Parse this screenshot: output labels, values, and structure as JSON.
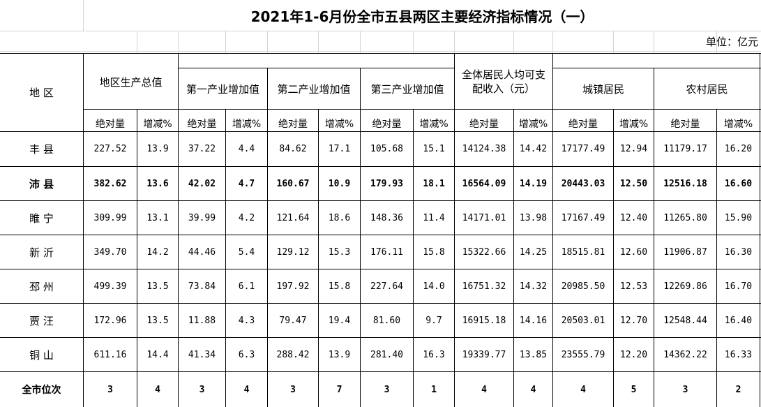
{
  "title": "2021年1-6月份全市五县两区主要经济指标情况（一）",
  "unit": "单位：亿元",
  "headers": {
    "region": "地  区",
    "gdp": "地区生产总值",
    "primary": "第一产业增加值",
    "secondary": "第二产业增加值",
    "tertiary": "第三产业增加值",
    "income_line1": "全体居民人均可支",
    "income_line2": "配收入（元）",
    "urban": "城镇居民",
    "rural": "农村居民"
  },
  "subheaders": [
    "绝对量",
    "增减%",
    "绝对量",
    "增减%",
    "绝对量",
    "增减%",
    "绝对量",
    "增减%",
    "绝对量",
    "增减%",
    "绝对量",
    "增减%",
    "绝对量",
    "增减%"
  ],
  "rows": [
    {
      "region": "丰 县",
      "values": [
        "227.52",
        "13.9",
        "37.22",
        "4.4",
        "84.62",
        "17.1",
        "105.68",
        "15.1",
        "14124.38",
        "14.42",
        "17177.49",
        "12.94",
        "11179.17",
        "16.20"
      ]
    },
    {
      "region": "沛 县",
      "values": [
        "382.62",
        "13.6",
        "42.02",
        "4.7",
        "160.67",
        "10.9",
        "179.93",
        "18.1",
        "16564.09",
        "14.19",
        "20443.03",
        "12.50",
        "12516.18",
        "16.60"
      ],
      "bold": true
    },
    {
      "region": "睢 宁",
      "values": [
        "309.99",
        "13.1",
        "39.99",
        "4.2",
        "121.64",
        "18.6",
        "148.36",
        "11.4",
        "14171.01",
        "13.98",
        "17167.49",
        "12.40",
        "11265.80",
        "15.90"
      ]
    },
    {
      "region": "新 沂",
      "values": [
        "349.70",
        "14.2",
        "44.46",
        "5.4",
        "129.12",
        "15.3",
        "176.11",
        "15.8",
        "15322.66",
        "14.25",
        "18515.81",
        "12.60",
        "11906.87",
        "16.30"
      ]
    },
    {
      "region": "邳 州",
      "values": [
        "499.39",
        "13.5",
        "73.84",
        "6.1",
        "197.92",
        "15.8",
        "227.64",
        "14.0",
        "16751.32",
        "14.32",
        "20985.50",
        "12.53",
        "12269.86",
        "16.70"
      ]
    },
    {
      "region": "贾 汪",
      "values": [
        "172.96",
        "13.5",
        "11.88",
        "4.3",
        "79.47",
        "19.4",
        "81.60",
        "9.7",
        "16915.18",
        "14.16",
        "20503.01",
        "12.70",
        "12548.44",
        "16.40"
      ]
    },
    {
      "region": "铜 山",
      "values": [
        "611.16",
        "14.4",
        "41.34",
        "6.3",
        "288.42",
        "13.9",
        "281.40",
        "16.3",
        "19339.77",
        "13.85",
        "23555.79",
        "12.20",
        "14362.22",
        "16.33"
      ]
    }
  ],
  "rank_row": {
    "label": "全市位次",
    "values": [
      "3",
      "4",
      "3",
      "4",
      "3",
      "7",
      "3",
      "1",
      "4",
      "4",
      "4",
      "5",
      "3",
      "2"
    ]
  }
}
